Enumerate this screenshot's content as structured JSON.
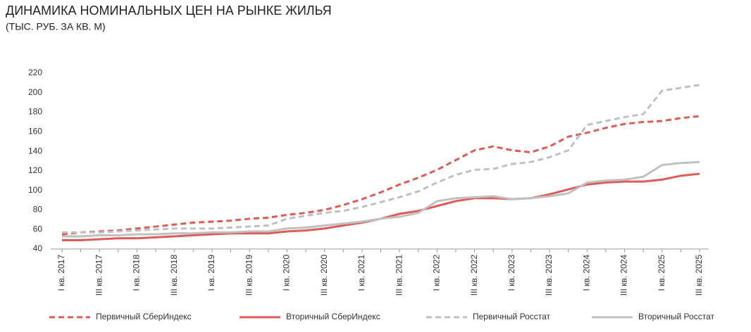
{
  "chart_data": {
    "type": "line",
    "title": "ДИНАМИКА НОМИНАЛЬНЫХ ЦЕН НА РЫНКЕ ЖИЛЬЯ",
    "subtitle": "(ТЫС. РУБ. ЗА КВ. М)",
    "categories": [
      "I кв. 2017",
      null,
      "III кв. 2017",
      null,
      "I кв. 2018",
      null,
      "III кв. 2018",
      null,
      "I кв. 2019",
      null,
      "III кв. 2019",
      null,
      "I кв. 2020",
      null,
      "III кв. 2020",
      null,
      "I кв. 2021",
      null,
      "III кв. 2021",
      null,
      "I кв. 2022",
      null,
      "III кв. 2022",
      null,
      "I кв. 2023",
      null,
      "III кв. 2023",
      null,
      "I кв. 2024",
      null,
      "III кв. 2024",
      null,
      "I кв. 2025",
      null,
      "III кв. 2025"
    ],
    "series": [
      {
        "name": "Первичный СберИндекс",
        "color": "#e05a56",
        "dashed": true,
        "values": [
          55,
          57,
          58,
          59,
          61,
          63,
          65,
          67,
          68,
          69,
          71,
          72,
          75,
          77,
          80,
          85,
          91,
          98,
          106,
          113,
          121,
          131,
          141,
          145,
          141,
          139,
          145,
          155,
          159,
          164,
          168,
          170,
          171,
          174,
          176
        ]
      },
      {
        "name": "Вторичный СберИндекс",
        "color": "#e05a56",
        "dashed": false,
        "values": [
          49,
          49,
          50,
          51,
          51,
          52,
          53,
          54,
          55,
          56,
          56,
          56,
          58,
          59,
          61,
          64,
          67,
          71,
          76,
          79,
          84,
          89,
          92,
          92,
          91,
          92,
          96,
          101,
          106,
          108,
          109,
          109,
          111,
          115,
          117
        ]
      },
      {
        "name": "Первичный Росстат",
        "color": "#c0c0c0",
        "dashed": true,
        "values": [
          57,
          57,
          57,
          58,
          59,
          60,
          61,
          61,
          61,
          62,
          63,
          64,
          71,
          74,
          77,
          79,
          83,
          88,
          93,
          99,
          108,
          116,
          121,
          122,
          127,
          129,
          134,
          141,
          167,
          171,
          175,
          178,
          202,
          205,
          208
        ]
      },
      {
        "name": "Вторичный Росстат",
        "color": "#c0c0c0",
        "dashed": false,
        "values": [
          53,
          53,
          54,
          54,
          55,
          55,
          56,
          56,
          57,
          57,
          58,
          58,
          61,
          62,
          64,
          66,
          68,
          71,
          73,
          77,
          89,
          92,
          93,
          94,
          91,
          92,
          94,
          97,
          108,
          110,
          111,
          114,
          126,
          128,
          129
        ]
      }
    ],
    "ylim": [
      40,
      220
    ],
    "yticks": [
      40,
      60,
      80,
      100,
      120,
      140,
      160,
      180,
      200,
      220
    ],
    "grid": false
  }
}
